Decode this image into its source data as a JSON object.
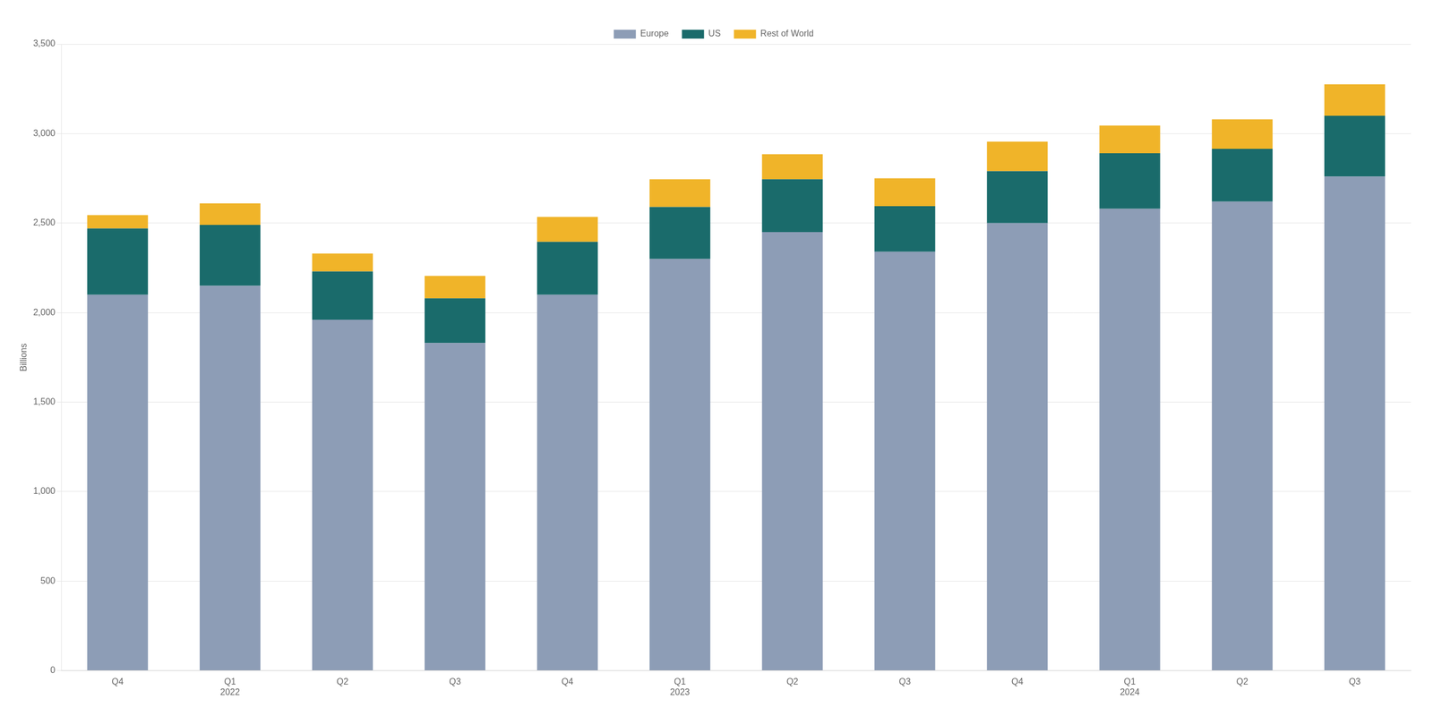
{
  "chart_data": {
    "type": "bar",
    "stacked": true,
    "ylabel": "Billions",
    "categories": [
      "Q4",
      "Q1\n2022",
      "Q2",
      "Q3",
      "Q4",
      "Q1\n2023",
      "Q2",
      "Q3",
      "Q4",
      "Q1\n2024",
      "Q2",
      "Q3"
    ],
    "series": [
      {
        "name": "Europe",
        "color": "#8D9DB6",
        "values": [
          2100,
          2150,
          1960,
          1830,
          2100,
          2300,
          2450,
          2340,
          2500,
          2580,
          2620,
          2760
        ]
      },
      {
        "name": "US",
        "color": "#1A6B6B",
        "values": [
          370,
          340,
          270,
          250,
          295,
          290,
          295,
          255,
          290,
          310,
          295,
          340
        ]
      },
      {
        "name": "Rest of World",
        "color": "#F0B429",
        "values": [
          75,
          120,
          100,
          125,
          140,
          155,
          140,
          155,
          165,
          155,
          165,
          175
        ]
      }
    ],
    "ylim": [
      0,
      3500
    ],
    "yticks": [
      0,
      500,
      {
        "value": 1000,
        "label": "1,000"
      },
      {
        "value": 1500,
        "label": "1,500"
      },
      {
        "value": 2000,
        "label": "2,000"
      },
      {
        "value": 2500,
        "label": "2,500"
      },
      {
        "value": 3000,
        "label": "3,000"
      },
      {
        "value": 3500,
        "label": "3,500"
      }
    ],
    "grid": true,
    "legend": "top"
  }
}
